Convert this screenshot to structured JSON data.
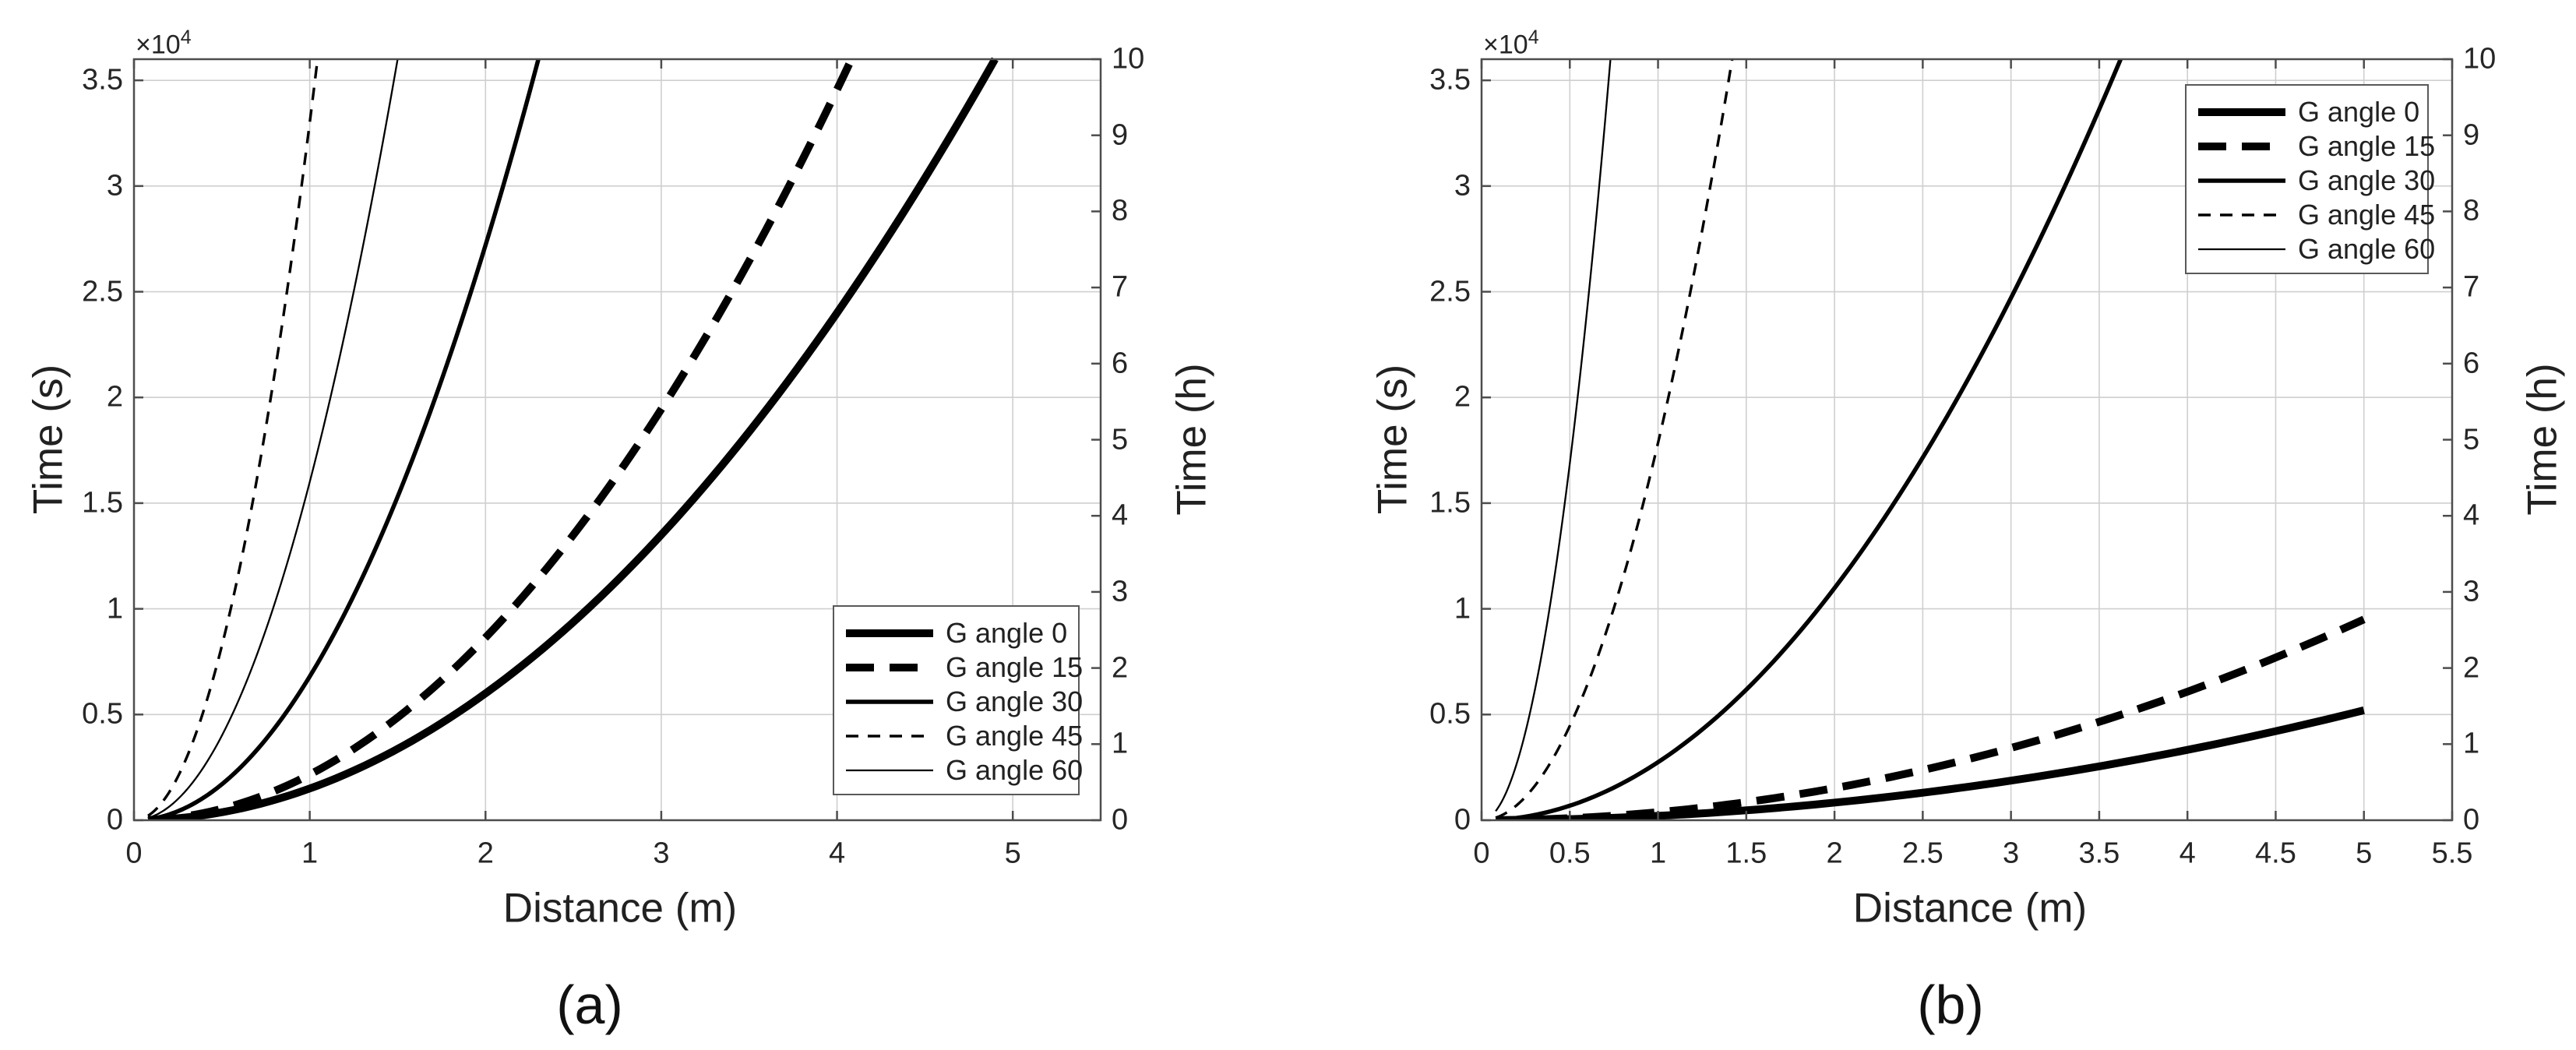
{
  "figure": {
    "background": "#ffffff",
    "line_color": "#000000",
    "grid_color": "#cfcfcf",
    "axis_color": "#4d4d4d",
    "text_color": "#212121"
  },
  "chart_data": [
    {
      "id": "a",
      "type": "line",
      "caption": "(a)",
      "xlabel": "Distance (m)",
      "ylabel_left": "Time (s)",
      "ylabel_right": "Time (h)",
      "y_multiplier": {
        "base": "×10",
        "exp": "4"
      },
      "xlim": [
        0,
        5.5
      ],
      "ylim_s": [
        0,
        36000
      ],
      "ylim_h": [
        0,
        10
      ],
      "grid": true,
      "legend_position": "bottom-right",
      "xticks": {
        "values": [
          0,
          1,
          2,
          3,
          4,
          5
        ],
        "labels": [
          "0",
          "1",
          "2",
          "3",
          "4",
          "5"
        ]
      },
      "yticks_left": {
        "values": [
          0,
          5000,
          10000,
          15000,
          20000,
          25000,
          30000,
          35000
        ],
        "labels": [
          "0",
          "0.5",
          "1",
          "1.5",
          "2",
          "2.5",
          "3",
          "3.5"
        ]
      },
      "yticks_right": {
        "values": [
          0,
          1,
          2,
          3,
          4,
          5,
          6,
          7,
          8,
          9,
          10
        ],
        "labels": [
          "0",
          "1",
          "2",
          "3",
          "4",
          "5",
          "6",
          "7",
          "8",
          "9",
          "10"
        ]
      },
      "series": [
        {
          "name": "G angle 0",
          "angle_deg": 0,
          "line": "solid",
          "line_width": 10,
          "dash": null,
          "coef_s_per_m2": 1500,
          "x_start": 0.08,
          "x_end": 5,
          "points_m_s": [
            [
              0.5,
              375
            ],
            [
              1,
              1500
            ],
            [
              1.5,
              3375
            ],
            [
              2,
              6000
            ],
            [
              2.5,
              9375
            ],
            [
              3,
              13500
            ],
            [
              3.5,
              18375
            ],
            [
              4,
              24000
            ],
            [
              4.5,
              30375
            ],
            [
              4.9,
              36000
            ]
          ]
        },
        {
          "name": "G angle 15",
          "angle_deg": 15,
          "line": "dashed",
          "line_width": 10,
          "dash": [
            36,
            20
          ],
          "coef_s_per_m2": 2160,
          "x_start": 0.08,
          "x_end": 5,
          "points_m_s": [
            [
              0.5,
              540
            ],
            [
              1,
              2160
            ],
            [
              1.5,
              4860
            ],
            [
              2,
              8640
            ],
            [
              2.5,
              13500
            ],
            [
              3,
              19440
            ],
            [
              3.5,
              26460
            ],
            [
              4,
              34560
            ],
            [
              4.08,
              36000
            ]
          ]
        },
        {
          "name": "G angle 30",
          "angle_deg": 30,
          "line": "solid",
          "line_width": 5.5,
          "dash": null,
          "coef_s_per_m2": 6800,
          "x_start": 0.08,
          "x_end": 5,
          "points_m_s": [
            [
              0.5,
              1700
            ],
            [
              1,
              6800
            ],
            [
              1.5,
              15300
            ],
            [
              2,
              27200
            ],
            [
              2.3,
              36000
            ]
          ]
        },
        {
          "name": "G angle 45",
          "angle_deg": 45,
          "line": "dashed",
          "line_width": 3.4,
          "dash": [
            16,
            12
          ],
          "coef_s_per_m2": 33000,
          "x_start": 0.08,
          "x_end": 5,
          "points_m_s": [
            [
              0.25,
              2060
            ],
            [
              0.5,
              8250
            ],
            [
              0.75,
              18560
            ],
            [
              1,
              33000
            ],
            [
              1.04,
              36000
            ]
          ]
        },
        {
          "name": "G angle 60",
          "angle_deg": 60,
          "line": "solid",
          "line_width": 2.3,
          "dash": null,
          "coef_s_per_m2": 16000,
          "x_start": 0.08,
          "x_end": 5,
          "points_m_s": [
            [
              0.25,
              1000
            ],
            [
              0.5,
              4000
            ],
            [
              0.75,
              9000
            ],
            [
              1,
              16000
            ],
            [
              1.25,
              25000
            ],
            [
              1.5,
              36000
            ]
          ]
        }
      ]
    },
    {
      "id": "b",
      "type": "line",
      "caption": "(b)",
      "xlabel": "Distance (m)",
      "ylabel_left": "Time (s)",
      "ylabel_right": "Time (h)",
      "y_multiplier": {
        "base": "×10",
        "exp": "4"
      },
      "xlim": [
        0,
        5.5
      ],
      "ylim_s": [
        0,
        36000
      ],
      "ylim_h": [
        0,
        10
      ],
      "grid": true,
      "legend_position": "top-right",
      "xticks": {
        "values": [
          0,
          0.5,
          1,
          1.5,
          2,
          2.5,
          3,
          3.5,
          4,
          4.5,
          5,
          5.5
        ],
        "labels": [
          "0",
          "0.5",
          "1",
          "1.5",
          "2",
          "2.5",
          "3",
          "3.5",
          "4",
          "4.5",
          "5",
          "5.5"
        ]
      },
      "yticks_left": {
        "values": [
          0,
          5000,
          10000,
          15000,
          20000,
          25000,
          30000,
          35000
        ],
        "labels": [
          "0",
          "0.5",
          "1",
          "1.5",
          "2",
          "2.5",
          "3",
          "3.5"
        ]
      },
      "yticks_right": {
        "values": [
          0,
          1,
          2,
          3,
          4,
          5,
          6,
          7,
          8,
          9,
          10
        ],
        "labels": [
          "0",
          "1",
          "2",
          "3",
          "4",
          "5",
          "6",
          "7",
          "8",
          "9",
          "10"
        ]
      },
      "series": [
        {
          "name": "G angle 0",
          "angle_deg": 0,
          "line": "solid",
          "line_width": 10,
          "dash": null,
          "coef_s_per_m2": 208,
          "x_start": 0.08,
          "x_end": 5,
          "points_m_s": [
            [
              1,
              208
            ],
            [
              2,
              832
            ],
            [
              3,
              1872
            ],
            [
              4,
              3328
            ],
            [
              5,
              5200
            ]
          ]
        },
        {
          "name": "G angle 15",
          "angle_deg": 15,
          "line": "dashed",
          "line_width": 10,
          "dash": [
            36,
            20
          ],
          "coef_s_per_m2": 380,
          "x_start": 0.08,
          "x_end": 5,
          "points_m_s": [
            [
              1,
              380
            ],
            [
              2,
              1520
            ],
            [
              3,
              3420
            ],
            [
              4,
              6080
            ],
            [
              5,
              9500
            ]
          ]
        },
        {
          "name": "G angle 30",
          "angle_deg": 30,
          "line": "solid",
          "line_width": 5.5,
          "dash": null,
          "coef_s_per_m2": 2745,
          "x_start": 0.08,
          "x_end": 5,
          "points_m_s": [
            [
              0.5,
              690
            ],
            [
              1,
              2745
            ],
            [
              1.5,
              6180
            ],
            [
              2,
              10980
            ],
            [
              2.5,
              17160
            ],
            [
              3,
              24700
            ],
            [
              3.5,
              33630
            ],
            [
              3.62,
              36000
            ]
          ]
        },
        {
          "name": "G angle 45",
          "angle_deg": 45,
          "line": "dashed",
          "line_width": 3.4,
          "dash": [
            16,
            12
          ],
          "coef_s_per_m2": 17850,
          "x_start": 0.08,
          "x_end": 5,
          "points_m_s": [
            [
              0.25,
              1120
            ],
            [
              0.5,
              4460
            ],
            [
              0.75,
              10040
            ],
            [
              1,
              17850
            ],
            [
              1.25,
              27890
            ],
            [
              1.42,
              36000
            ]
          ]
        },
        {
          "name": "G angle 60",
          "angle_deg": 60,
          "line": "solid",
          "line_width": 2.3,
          "dash": null,
          "coef_s_per_m2": 67500,
          "x_start": 0.08,
          "x_end": 5,
          "points_m_s": [
            [
              0.1,
              675
            ],
            [
              0.25,
              4220
            ],
            [
              0.5,
              16875
            ],
            [
              0.73,
              36000
            ]
          ]
        }
      ]
    }
  ]
}
